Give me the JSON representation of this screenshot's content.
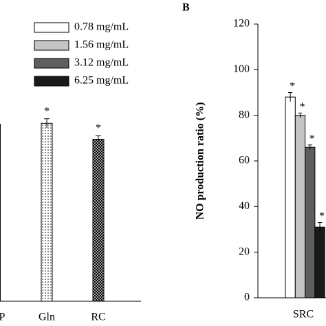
{
  "chart_data": [
    {
      "type": "bar",
      "categories": [
        "P",
        "Gln",
        "RC"
      ],
      "values": [
        null,
        78,
        71
      ],
      "errors": [
        null,
        2,
        1.5
      ],
      "annotations": [
        null,
        "*",
        "*"
      ],
      "patterns": [
        null,
        "dots",
        "crosshatch"
      ]
    },
    {
      "type": "bar",
      "panel_label": "B",
      "y_label": "NO production ratio (%)",
      "categories": [
        "SRC"
      ],
      "series": [
        {
          "name": "0.78 mg/mL",
          "color": "#ffffff",
          "values": [
            88
          ],
          "errors": [
            2
          ],
          "annotation": "*"
        },
        {
          "name": "1.56 mg/mL",
          "color": "#c4c4c4",
          "values": [
            80
          ],
          "errors": [
            1
          ],
          "annotation": "*"
        },
        {
          "name": "3.12 mg/mL",
          "color": "#5e5e5e",
          "values": [
            66
          ],
          "errors": [
            1
          ],
          "annotation": "*"
        },
        {
          "name": "6.25 mg/mL",
          "color": "#1a1a1a",
          "values": [
            31
          ],
          "errors": [
            2
          ],
          "annotation": "*"
        }
      ],
      "ylim": [
        0,
        120
      ],
      "yticks": [
        0,
        20,
        40,
        60,
        80,
        100,
        120
      ]
    }
  ]
}
